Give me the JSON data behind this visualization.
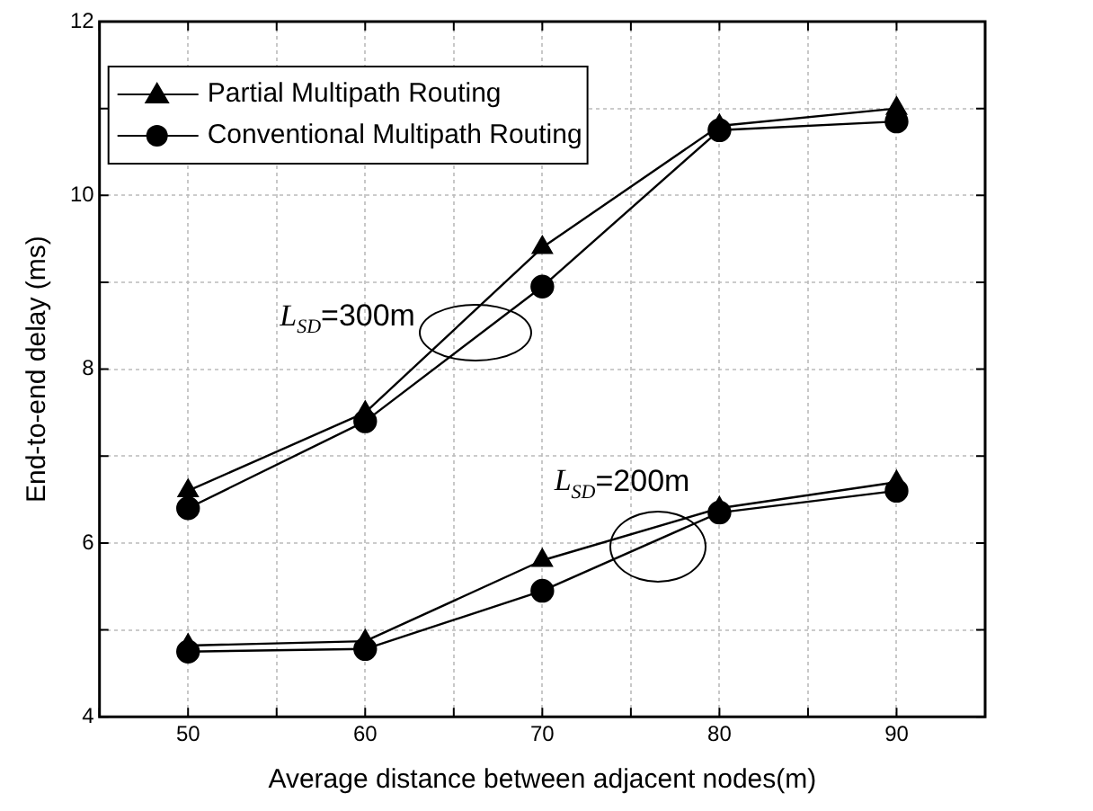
{
  "chart_data": {
    "type": "line",
    "xlabel": "Average distance between adjacent nodes(m)",
    "ylabel": "End-to-end delay (ms)",
    "x": [
      50,
      60,
      70,
      80,
      90
    ],
    "series": [
      {
        "name": "Partial Multipath Routing",
        "color": "#000000",
        "marker": "triangle",
        "values": [
          6.6,
          7.5,
          9.4,
          10.8,
          11.0
        ]
      },
      {
        "name": "Conventional Multipath Routing",
        "color": "#000000",
        "marker": "circle",
        "values": [
          6.4,
          7.4,
          8.95,
          10.75,
          10.85
        ]
      },
      {
        "color": "#000000",
        "marker": "triangle",
        "values": [
          4.82,
          4.87,
          5.8,
          6.4,
          6.7
        ]
      },
      {
        "color": "#000000",
        "marker": "circle",
        "values": [
          4.75,
          4.78,
          5.45,
          6.35,
          6.6
        ]
      }
    ],
    "xlim": [
      45,
      95
    ],
    "xticks": [
      {
        "value": 45,
        "label": null
      },
      50,
      {
        "value": 55,
        "label": null
      },
      60,
      {
        "value": 65,
        "label": null
      },
      70,
      {
        "value": 75,
        "label": null
      },
      80,
      {
        "value": 85,
        "label": null
      },
      90,
      {
        "value": 95,
        "label": null
      }
    ],
    "ylim": [
      4,
      12
    ],
    "yticks": [
      4,
      {
        "value": 5,
        "label": null
      },
      6,
      {
        "value": 7,
        "label": null
      },
      8,
      {
        "value": 9,
        "label": null
      },
      10,
      {
        "value": 11,
        "label": null
      },
      12
    ],
    "annotations": [
      "L$_{SD}$=300m",
      "L$_{SD}$=200m"
    ],
    "grid": true,
    "legend": "top left",
    "line_style": "solid"
  }
}
